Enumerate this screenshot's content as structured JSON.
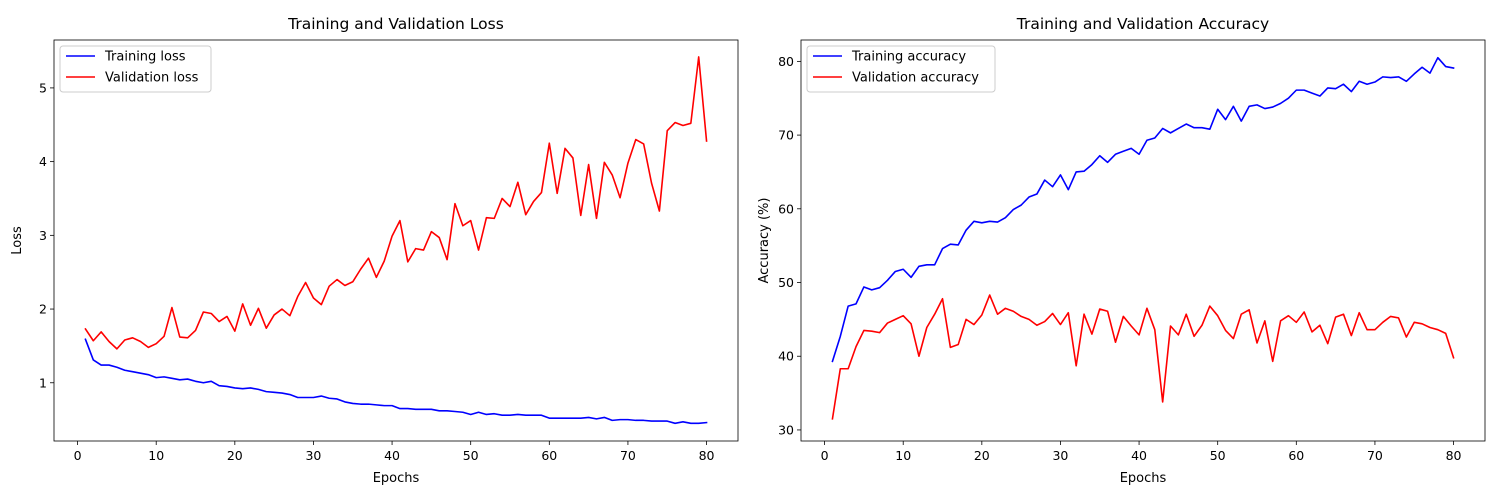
{
  "chart_data": [
    {
      "type": "line",
      "title": "Training and Validation Loss",
      "xlabel": "Epochs",
      "ylabel": "Loss",
      "xlim": [
        -3,
        84
      ],
      "ylim": [
        0.21,
        5.65
      ],
      "xticks": [
        0,
        10,
        20,
        30,
        40,
        50,
        60,
        70,
        80
      ],
      "yticks": [
        1,
        2,
        3,
        4,
        5
      ],
      "legend": "top-left",
      "grid": false,
      "x": [
        1,
        2,
        3,
        4,
        5,
        6,
        7,
        8,
        9,
        10,
        11,
        12,
        13,
        14,
        15,
        16,
        17,
        18,
        19,
        20,
        21,
        22,
        23,
        24,
        25,
        26,
        27,
        28,
        29,
        30,
        31,
        32,
        33,
        34,
        35,
        36,
        37,
        38,
        39,
        40,
        41,
        42,
        43,
        44,
        45,
        46,
        47,
        48,
        49,
        50,
        51,
        52,
        53,
        54,
        55,
        56,
        57,
        58,
        59,
        60,
        61,
        62,
        63,
        64,
        65,
        66,
        67,
        68,
        69,
        70,
        71,
        72,
        73,
        74,
        75,
        76,
        77,
        78,
        79,
        80
      ],
      "series": [
        {
          "name": "Training loss",
          "color": "#0000ff",
          "values": [
            1.59,
            1.31,
            1.24,
            1.24,
            1.21,
            1.17,
            1.15,
            1.13,
            1.11,
            1.07,
            1.08,
            1.06,
            1.04,
            1.05,
            1.02,
            1.0,
            1.02,
            0.96,
            0.95,
            0.93,
            0.92,
            0.93,
            0.91,
            0.88,
            0.87,
            0.86,
            0.84,
            0.8,
            0.8,
            0.8,
            0.82,
            0.79,
            0.78,
            0.74,
            0.72,
            0.71,
            0.71,
            0.7,
            0.69,
            0.69,
            0.65,
            0.65,
            0.64,
            0.64,
            0.64,
            0.62,
            0.62,
            0.61,
            0.6,
            0.57,
            0.6,
            0.57,
            0.58,
            0.56,
            0.56,
            0.57,
            0.56,
            0.56,
            0.56,
            0.52,
            0.52,
            0.52,
            0.52,
            0.52,
            0.53,
            0.51,
            0.53,
            0.49,
            0.5,
            0.5,
            0.49,
            0.49,
            0.48,
            0.48,
            0.48,
            0.45,
            0.47,
            0.45,
            0.45,
            0.46
          ]
        },
        {
          "name": "Validation loss",
          "color": "#ff0000",
          "values": [
            1.73,
            1.57,
            1.69,
            1.56,
            1.46,
            1.58,
            1.61,
            1.56,
            1.48,
            1.53,
            1.63,
            2.02,
            1.62,
            1.61,
            1.71,
            1.96,
            1.94,
            1.83,
            1.9,
            1.7,
            2.07,
            1.78,
            2.01,
            1.74,
            1.92,
            2.0,
            1.91,
            2.17,
            2.36,
            2.15,
            2.06,
            2.31,
            2.4,
            2.32,
            2.37,
            2.54,
            2.69,
            2.43,
            2.65,
            2.99,
            3.2,
            2.64,
            2.82,
            2.8,
            3.05,
            2.97,
            2.67,
            3.43,
            3.13,
            3.2,
            2.8,
            3.24,
            3.23,
            3.5,
            3.39,
            3.72,
            3.28,
            3.46,
            3.58,
            4.25,
            3.57,
            4.18,
            4.05,
            3.27,
            3.96,
            3.23,
            3.99,
            3.82,
            3.51,
            3.98,
            4.3,
            4.24,
            3.71,
            3.33,
            4.42,
            4.53,
            4.49,
            4.52,
            5.42,
            4.28
          ]
        }
      ]
    },
    {
      "type": "line",
      "title": "Training and Validation Accuracy",
      "xlabel": "Epochs",
      "ylabel": "Accuracy (%)",
      "xlim": [
        -3,
        84
      ],
      "ylim": [
        28.5,
        82.9
      ],
      "xticks": [
        0,
        10,
        20,
        30,
        40,
        50,
        60,
        70,
        80
      ],
      "yticks": [
        30,
        40,
        50,
        60,
        70,
        80
      ],
      "legend": "top-left",
      "grid": false,
      "x": [
        1,
        2,
        3,
        4,
        5,
        6,
        7,
        8,
        9,
        10,
        11,
        12,
        13,
        14,
        15,
        16,
        17,
        18,
        19,
        20,
        21,
        22,
        23,
        24,
        25,
        26,
        27,
        28,
        29,
        30,
        31,
        32,
        33,
        34,
        35,
        36,
        37,
        38,
        39,
        40,
        41,
        42,
        43,
        44,
        45,
        46,
        47,
        48,
        49,
        50,
        51,
        52,
        53,
        54,
        55,
        56,
        57,
        58,
        59,
        60,
        61,
        62,
        63,
        64,
        65,
        66,
        67,
        68,
        69,
        70,
        71,
        72,
        73,
        74,
        75,
        76,
        77,
        78,
        79,
        80
      ],
      "series": [
        {
          "name": "Training accuracy",
          "color": "#0000ff",
          "values": [
            39.3,
            42.7,
            46.8,
            47.1,
            49.4,
            49.0,
            49.3,
            50.3,
            51.5,
            51.8,
            50.7,
            52.2,
            52.4,
            52.4,
            54.6,
            55.2,
            55.1,
            57.1,
            58.3,
            58.1,
            58.3,
            58.2,
            58.8,
            59.9,
            60.5,
            61.6,
            62.0,
            63.9,
            63.0,
            64.6,
            62.6,
            65.0,
            65.1,
            66.0,
            67.2,
            66.3,
            67.4,
            67.8,
            68.2,
            67.4,
            69.3,
            69.6,
            70.9,
            70.3,
            70.9,
            71.5,
            71.0,
            71.0,
            70.8,
            73.5,
            72.1,
            73.9,
            71.9,
            73.9,
            74.1,
            73.6,
            73.8,
            74.3,
            75.0,
            76.1,
            76.1,
            75.7,
            75.3,
            76.4,
            76.3,
            76.9,
            75.9,
            77.3,
            76.9,
            77.2,
            77.9,
            77.8,
            77.9,
            77.3,
            78.3,
            79.2,
            78.4,
            80.5,
            79.3,
            79.1
          ]
        },
        {
          "name": "Validation accuracy",
          "color": "#ff0000",
          "values": [
            31.5,
            38.3,
            38.3,
            41.3,
            43.5,
            43.4,
            43.2,
            44.5,
            45.0,
            45.5,
            44.4,
            40.0,
            43.9,
            45.7,
            47.8,
            41.2,
            41.6,
            45.0,
            44.3,
            45.6,
            48.3,
            45.7,
            46.5,
            46.1,
            45.4,
            45.0,
            44.2,
            44.7,
            45.8,
            44.3,
            45.9,
            38.7,
            45.7,
            43.0,
            46.4,
            46.1,
            41.9,
            45.4,
            44.1,
            42.9,
            46.5,
            43.6,
            33.8,
            44.1,
            42.9,
            45.7,
            42.7,
            44.2,
            46.8,
            45.5,
            43.5,
            42.4,
            45.7,
            46.3,
            41.8,
            44.8,
            39.3,
            44.8,
            45.5,
            44.6,
            46.0,
            43.3,
            44.2,
            41.7,
            45.3,
            45.7,
            42.8,
            45.9,
            43.6,
            43.6,
            44.6,
            45.4,
            45.2,
            42.6,
            44.6,
            44.4,
            43.9,
            43.6,
            43.1,
            39.8
          ]
        }
      ]
    }
  ]
}
